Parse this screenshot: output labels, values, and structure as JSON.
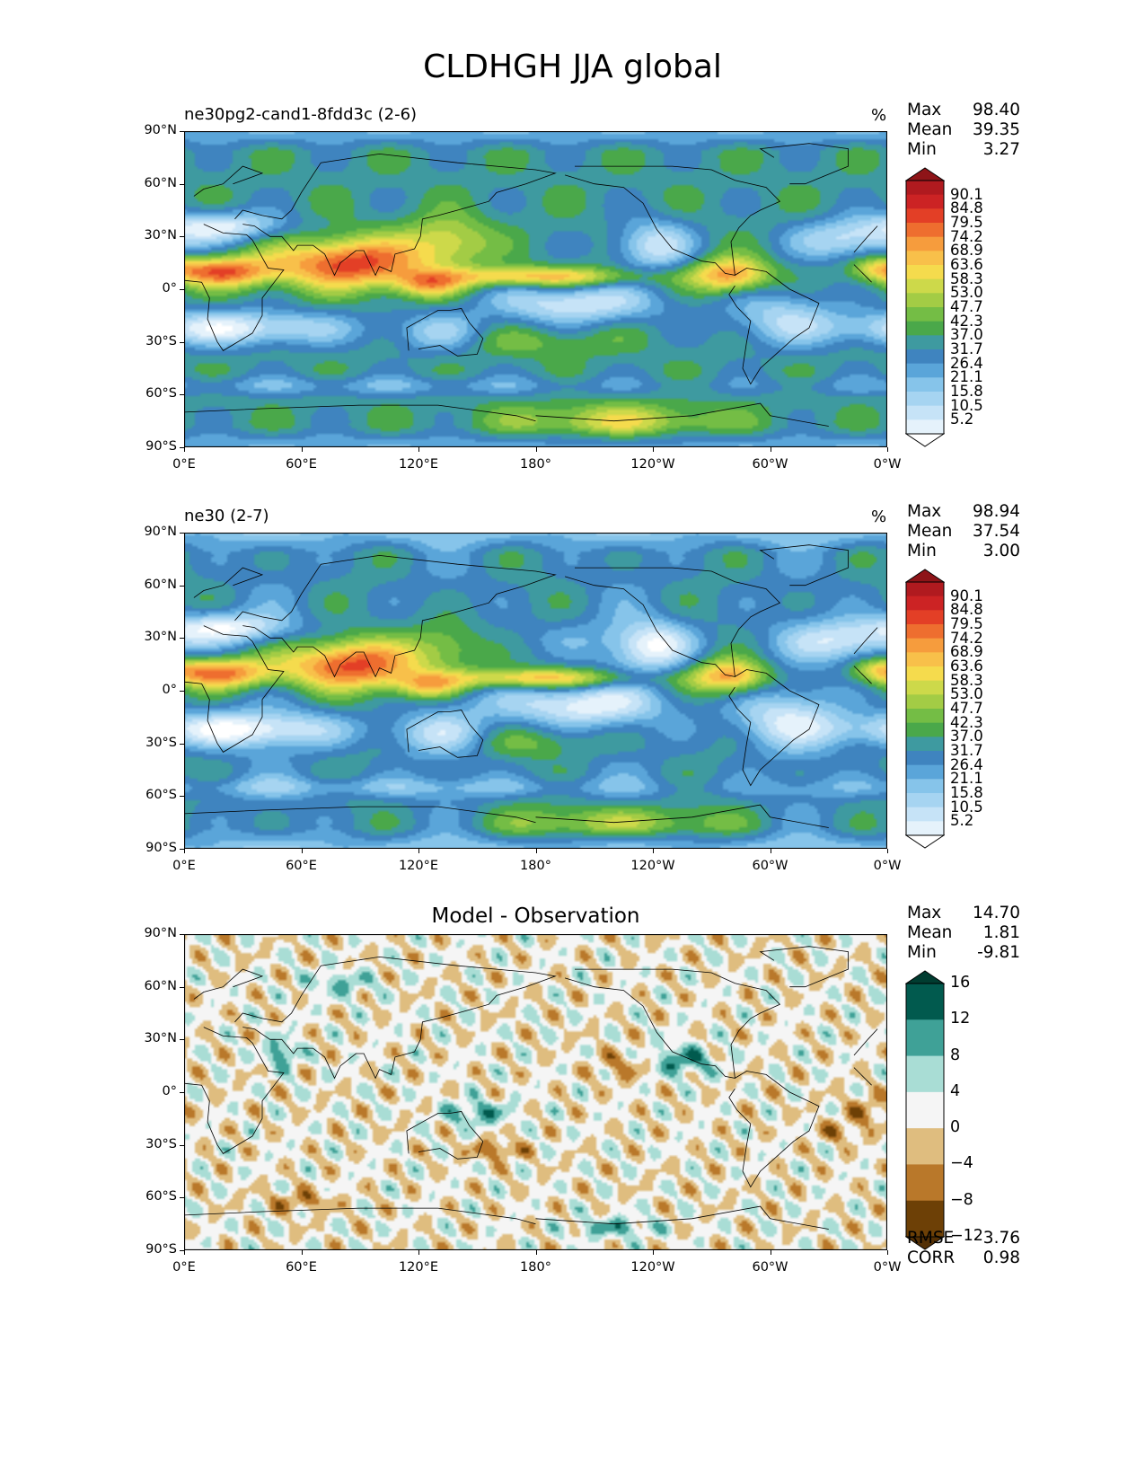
{
  "figure_title": "CLDHGH JJA global",
  "colors": {
    "abs_levels": [
      "#ffffff",
      "#e5f2fb",
      "#c6e3f7",
      "#a6d4f1",
      "#86c4ea",
      "#5aa5d9",
      "#3f84bf",
      "#3e9aa0",
      "#4aa84a",
      "#74bd45",
      "#a3cc45",
      "#cdd94a",
      "#f5db4d",
      "#f8c04a",
      "#f69c3d",
      "#ee6e2f",
      "#e33f26",
      "#cc2324",
      "#b01a1f",
      "#8e1418"
    ],
    "abs_low_ext": "#ffffff",
    "abs_high_ext": "#8e1418",
    "diff_levels": [
      "#6d4006",
      "#b9782a",
      "#dfbd7f",
      "#f5f5f5",
      "#a9ddd5",
      "#3fa197",
      "#015a4e"
    ],
    "diff_low_ext": "#543005",
    "diff_high_ext": "#003c30",
    "coastline": "#000000"
  },
  "panels": [
    {
      "title": "ne30pg2-cand1-8fdd3c (2-6)",
      "units": "%",
      "stats": {
        "max_label": "Max",
        "max": "98.40",
        "mean_label": "Mean",
        "mean": "39.35",
        "min_label": "Min",
        "min": "3.27"
      },
      "colorbar_labels": [
        "90.1",
        "84.8",
        "79.5",
        "74.2",
        "68.9",
        "63.6",
        "58.3",
        "53.0",
        "47.7",
        "42.3",
        "37.0",
        "31.7",
        "26.4",
        "21.1",
        "15.8",
        "10.5",
        "5.2"
      ],
      "field": "model_a"
    },
    {
      "title": "ne30 (2-7)",
      "units": "%",
      "stats": {
        "max_label": "Max",
        "max": "98.94",
        "mean_label": "Mean",
        "mean": "37.54",
        "min_label": "Min",
        "min": "3.00"
      },
      "colorbar_labels": [
        "90.1",
        "84.8",
        "79.5",
        "74.2",
        "68.9",
        "63.6",
        "58.3",
        "53.0",
        "47.7",
        "42.3",
        "37.0",
        "31.7",
        "26.4",
        "21.1",
        "15.8",
        "10.5",
        "5.2"
      ],
      "field": "model_b"
    },
    {
      "title": "Model - Observation",
      "units": "",
      "stats": {
        "max_label": "Max",
        "max": "14.70",
        "mean_label": "Mean",
        "mean": "1.81",
        "min_label": "Min",
        "min": "-9.81"
      },
      "colorbar_labels": [
        "16",
        "12",
        "8",
        "4",
        "0",
        "−4",
        "−8",
        "−12"
      ],
      "footer": {
        "rmse_label": "RMSE",
        "rmse": "3.76",
        "corr_label": "CORR",
        "corr": "0.98"
      },
      "field": "diff"
    }
  ],
  "axes": {
    "lat_ticks": [
      "90°N",
      "60°N",
      "30°N",
      "0°",
      "30°S",
      "60°S",
      "90°S"
    ],
    "lon_ticks": [
      "0°E",
      "60°E",
      "120°E",
      "180°",
      "120°W",
      "60°W",
      "0°W"
    ]
  },
  "chart_data": [
    {
      "type": "heatmap",
      "title": "ne30pg2-cand1-8fdd3c (2-6)",
      "variable": "CLDHGH",
      "season": "JJA",
      "region": "global",
      "units": "%",
      "xlim": [
        0,
        360
      ],
      "ylim": [
        -90,
        90
      ],
      "levels": [
        5.2,
        10.5,
        15.8,
        21.1,
        26.4,
        31.7,
        37.0,
        42.3,
        47.7,
        53.0,
        58.3,
        63.6,
        68.9,
        74.2,
        79.5,
        84.8,
        90.1
      ],
      "max": 98.4,
      "mean": 39.35,
      "min": 3.27
    },
    {
      "type": "heatmap",
      "title": "ne30 (2-7)",
      "variable": "CLDHGH",
      "season": "JJA",
      "region": "global",
      "units": "%",
      "xlim": [
        0,
        360
      ],
      "ylim": [
        -90,
        90
      ],
      "levels": [
        5.2,
        10.5,
        15.8,
        21.1,
        26.4,
        31.7,
        37.0,
        42.3,
        47.7,
        53.0,
        58.3,
        63.6,
        68.9,
        74.2,
        79.5,
        84.8,
        90.1
      ],
      "max": 98.94,
      "mean": 37.54,
      "min": 3.0
    },
    {
      "type": "heatmap",
      "title": "Model - Observation",
      "xlim": [
        0,
        360
      ],
      "ylim": [
        -90,
        90
      ],
      "levels": [
        -12,
        -8,
        -4,
        0,
        4,
        8,
        12,
        16
      ],
      "max": 14.7,
      "mean": 1.81,
      "min": -9.81,
      "rmse": 3.76,
      "corr": 0.98
    }
  ]
}
